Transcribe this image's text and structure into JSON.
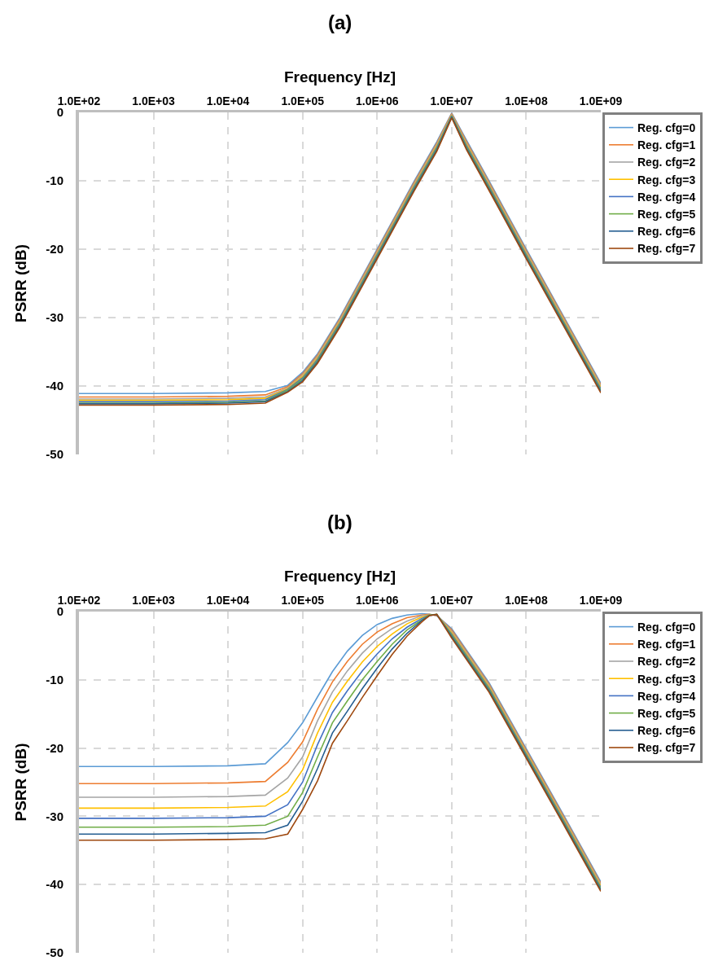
{
  "chart_data": [
    {
      "type": "line",
      "title": "(a)",
      "xlabel": "Frequency [Hz]",
      "ylabel": "PSRR (dB)",
      "log": "x",
      "grid": true,
      "legend": "top right",
      "xlim": [
        100,
        1000000000
      ],
      "xticks": [
        {
          "value": 100,
          "label": "1.0E+02"
        },
        {
          "value": 1000,
          "label": "1.0E+03"
        },
        {
          "value": 10000,
          "label": "1.0E+04"
        },
        {
          "value": 100000,
          "label": "1.0E+05"
        },
        {
          "value": 1000000,
          "label": "1.0E+06"
        },
        {
          "value": 10000000,
          "label": "1.0E+07"
        },
        {
          "value": 100000000,
          "label": "1.0E+08"
        },
        {
          "value": 1000000000,
          "label": "1.0E+09"
        }
      ],
      "ylim": [
        -50,
        0
      ],
      "yticks": [
        -50,
        -40,
        -30,
        -20,
        -10,
        0
      ],
      "x": [
        100,
        1000,
        10000,
        31623,
        63096,
        100000,
        158489,
        316228,
        1000000,
        3162278,
        6309573,
        10000000,
        15848932,
        31622777,
        100000000,
        316227766,
        1000000000
      ],
      "series": [
        {
          "name": "Reg. cfg=0",
          "color": "#5b9bd5",
          "values": [
            -41.1,
            -41.1,
            -41.0,
            -40.8,
            -39.9,
            -38.0,
            -35.3,
            -30.0,
            -20.0,
            -10.0,
            -4.3,
            -0.1,
            -4.1,
            -10.0,
            -20.0,
            -29.8,
            -39.6
          ]
        },
        {
          "name": "Reg. cfg=1",
          "color": "#ed7d31",
          "values": [
            -41.6,
            -41.6,
            -41.5,
            -41.3,
            -40.1,
            -38.2,
            -35.5,
            -30.2,
            -20.2,
            -10.2,
            -4.5,
            -0.2,
            -4.3,
            -10.2,
            -20.2,
            -30.0,
            -39.8
          ]
        },
        {
          "name": "Reg. cfg=2",
          "color": "#a5a5a5",
          "values": [
            -41.9,
            -41.9,
            -41.8,
            -41.6,
            -40.3,
            -38.4,
            -35.7,
            -30.4,
            -20.4,
            -10.4,
            -4.7,
            -0.3,
            -4.5,
            -10.4,
            -20.4,
            -30.2,
            -40.0
          ]
        },
        {
          "name": "Reg. cfg=3",
          "color": "#ffc000",
          "values": [
            -42.1,
            -42.1,
            -42.0,
            -41.8,
            -40.4,
            -38.6,
            -35.9,
            -30.6,
            -20.6,
            -10.6,
            -4.9,
            -0.4,
            -4.7,
            -10.6,
            -20.6,
            -30.4,
            -40.2
          ]
        },
        {
          "name": "Reg. cfg=4",
          "color": "#4472c4",
          "values": [
            -42.3,
            -42.3,
            -42.2,
            -42.0,
            -40.5,
            -38.8,
            -36.1,
            -30.8,
            -20.8,
            -10.8,
            -5.1,
            -0.5,
            -4.9,
            -10.8,
            -20.8,
            -30.6,
            -40.4
          ]
        },
        {
          "name": "Reg. cfg=5",
          "color": "#70ad47",
          "values": [
            -42.5,
            -42.5,
            -42.4,
            -42.2,
            -40.6,
            -39.0,
            -36.3,
            -31.0,
            -21.0,
            -11.0,
            -5.3,
            -0.6,
            -5.1,
            -11.0,
            -21.0,
            -30.8,
            -40.6
          ]
        },
        {
          "name": "Reg. cfg=6",
          "color": "#255e91",
          "values": [
            -42.6,
            -42.6,
            -42.5,
            -42.3,
            -40.8,
            -39.2,
            -36.5,
            -31.2,
            -21.2,
            -11.2,
            -5.5,
            -0.7,
            -5.3,
            -11.2,
            -21.2,
            -31.0,
            -40.8
          ]
        },
        {
          "name": "Reg. cfg=7",
          "color": "#9e480e",
          "values": [
            -42.8,
            -42.8,
            -42.7,
            -42.5,
            -40.9,
            -39.4,
            -36.7,
            -31.4,
            -21.4,
            -11.4,
            -5.7,
            -0.8,
            -5.5,
            -11.4,
            -21.4,
            -31.2,
            -41.0
          ]
        }
      ]
    },
    {
      "type": "line",
      "title": "(b)",
      "xlabel": "Frequency [Hz]",
      "ylabel": "PSRR (dB)",
      "log": "x",
      "grid": true,
      "legend": "top right",
      "xlim": [
        100,
        1000000000
      ],
      "xticks": [
        {
          "value": 100,
          "label": "1.0E+02"
        },
        {
          "value": 1000,
          "label": "1.0E+03"
        },
        {
          "value": 10000,
          "label": "1.0E+04"
        },
        {
          "value": 100000,
          "label": "1.0E+05"
        },
        {
          "value": 1000000,
          "label": "1.0E+06"
        },
        {
          "value": 10000000,
          "label": "1.0E+07"
        },
        {
          "value": 100000000,
          "label": "1.0E+08"
        },
        {
          "value": 1000000000,
          "label": "1.0E+09"
        }
      ],
      "ylim": [
        -50,
        0
      ],
      "yticks": [
        -50,
        -40,
        -30,
        -20,
        -10,
        0
      ],
      "x": [
        100,
        1000,
        10000,
        31623,
        63096,
        100000,
        158489,
        251189,
        398107,
        630957,
        1000000,
        1584893,
        2511886,
        3981072,
        5011872,
        6309573,
        10000000,
        31622777,
        100000000,
        316227766,
        1000000000
      ],
      "series": [
        {
          "name": "Reg. cfg=0",
          "color": "#5b9bd5",
          "values": [
            -22.7,
            -22.7,
            -22.6,
            -22.3,
            -19.2,
            -16.3,
            -12.5,
            -8.8,
            -5.8,
            -3.5,
            -1.9,
            -1.0,
            -0.5,
            -0.3,
            -0.4,
            -0.6,
            -2.5,
            -10.4,
            -20.1,
            -29.8,
            -39.6
          ]
        },
        {
          "name": "Reg. cfg=1",
          "color": "#ed7d31",
          "values": [
            -25.2,
            -25.2,
            -25.1,
            -24.9,
            -22.1,
            -19.1,
            -14.3,
            -10.3,
            -7.3,
            -4.8,
            -3.0,
            -1.8,
            -0.9,
            -0.5,
            -0.4,
            -0.6,
            -2.7,
            -10.6,
            -20.3,
            -30.0,
            -39.8
          ]
        },
        {
          "name": "Reg. cfg=2",
          "color": "#a5a5a5",
          "values": [
            -27.2,
            -27.2,
            -27.1,
            -26.9,
            -24.4,
            -21.3,
            -16.0,
            -11.8,
            -8.7,
            -6.1,
            -4.0,
            -2.5,
            -1.4,
            -0.6,
            -0.5,
            -0.5,
            -2.9,
            -10.8,
            -20.5,
            -30.2,
            -40.0
          ]
        },
        {
          "name": "Reg. cfg=3",
          "color": "#ffc000",
          "values": [
            -28.8,
            -28.8,
            -28.7,
            -28.5,
            -26.4,
            -23.2,
            -17.8,
            -13.3,
            -10.2,
            -7.4,
            -5.1,
            -3.3,
            -1.8,
            -0.8,
            -0.5,
            -0.5,
            -3.1,
            -11.0,
            -20.7,
            -30.4,
            -40.2
          ]
        },
        {
          "name": "Reg. cfg=4",
          "color": "#4472c4",
          "values": [
            -30.3,
            -30.3,
            -30.2,
            -30.0,
            -28.3,
            -25.0,
            -19.5,
            -14.8,
            -11.6,
            -8.7,
            -6.2,
            -4.0,
            -2.3,
            -1.0,
            -0.5,
            -0.5,
            -3.3,
            -11.2,
            -20.9,
            -30.6,
            -40.4
          ]
        },
        {
          "name": "Reg. cfg=5",
          "color": "#70ad47",
          "values": [
            -31.6,
            -31.6,
            -31.5,
            -31.3,
            -30.0,
            -26.5,
            -21.3,
            -16.3,
            -13.1,
            -10.0,
            -7.3,
            -4.8,
            -2.7,
            -1.2,
            -0.5,
            -0.4,
            -3.5,
            -11.4,
            -21.1,
            -30.8,
            -40.6
          ]
        },
        {
          "name": "Reg. cfg=6",
          "color": "#255e91",
          "values": [
            -32.6,
            -32.6,
            -32.5,
            -32.4,
            -31.3,
            -27.8,
            -23.0,
            -17.8,
            -14.6,
            -11.3,
            -8.3,
            -5.5,
            -3.2,
            -1.3,
            -0.6,
            -0.4,
            -3.7,
            -11.6,
            -21.3,
            -31.0,
            -40.8
          ]
        },
        {
          "name": "Reg. cfg=7",
          "color": "#9e480e",
          "values": [
            -33.5,
            -33.5,
            -33.4,
            -33.3,
            -32.6,
            -29.0,
            -24.8,
            -19.3,
            -16.0,
            -12.6,
            -9.4,
            -6.3,
            -3.6,
            -1.5,
            -0.6,
            -0.4,
            -3.9,
            -11.8,
            -21.5,
            -31.2,
            -41.0
          ]
        }
      ]
    }
  ]
}
